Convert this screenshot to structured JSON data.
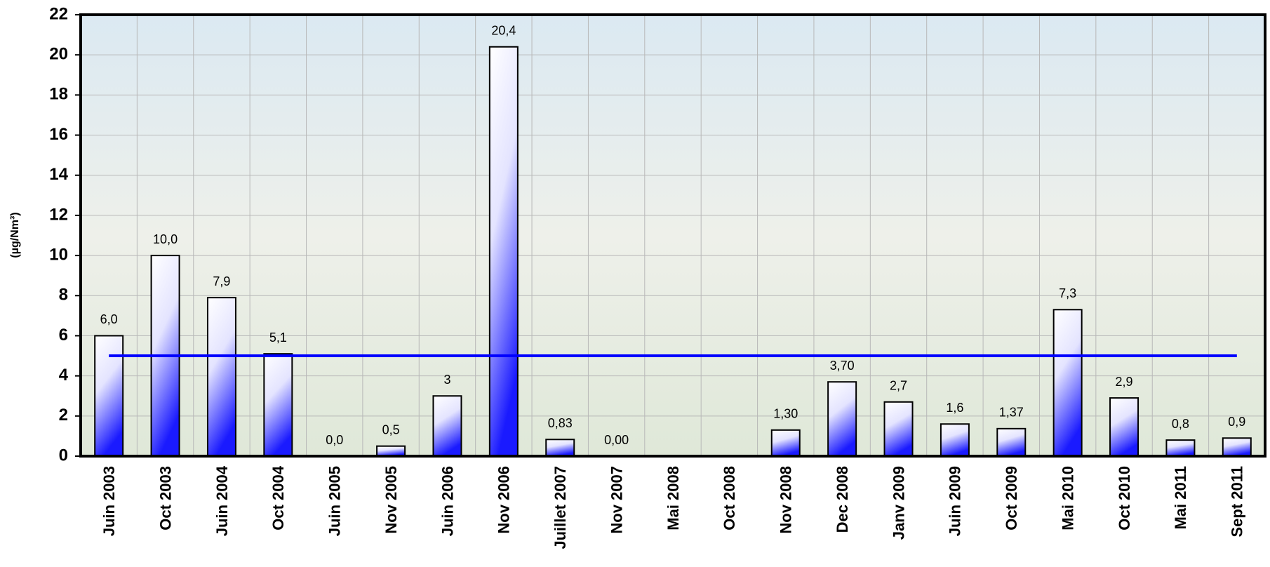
{
  "chart_data": {
    "type": "bar",
    "y_label": "(µg/Nm³)",
    "categories": [
      "Juin 2003",
      "Oct 2003",
      "Juin 2004",
      "Oct 2004",
      "Juin 2005",
      "Nov 2005",
      "Juin 2006",
      "Nov 2006",
      "Juillet 2007",
      "Nov 2007",
      "Mai 2008",
      "Oct 2008",
      "Nov 2008",
      "Dec 2008",
      "Janv 2009",
      "Juin 2009",
      "Oct 2009",
      "Mai 2010",
      "Oct 2010",
      "Mai 2011",
      "Sept 2011"
    ],
    "values": [
      6.0,
      10.0,
      7.9,
      5.1,
      0.0,
      0.5,
      3,
      20.4,
      0.83,
      0.0,
      null,
      null,
      1.3,
      3.7,
      2.7,
      1.6,
      1.37,
      7.3,
      2.9,
      0.8,
      0.9
    ],
    "value_labels": [
      "6,0",
      "10,0",
      "7,9",
      "5,1",
      "0,0",
      "0,5",
      "3",
      "20,4",
      "0,83",
      "0,00",
      null,
      null,
      "1,30",
      "3,70",
      "2,7",
      "1,6",
      "1,37",
      "7,3",
      "2,9",
      "0,8",
      "0,9"
    ],
    "color": "#1a1aff",
    "reference_line": {
      "value": 5,
      "color": "#0000ff"
    },
    "ylim": [
      0,
      22
    ],
    "yticks": [
      0,
      2,
      4,
      6,
      8,
      10,
      12,
      14,
      16,
      18,
      20,
      22
    ],
    "grid": true
  }
}
